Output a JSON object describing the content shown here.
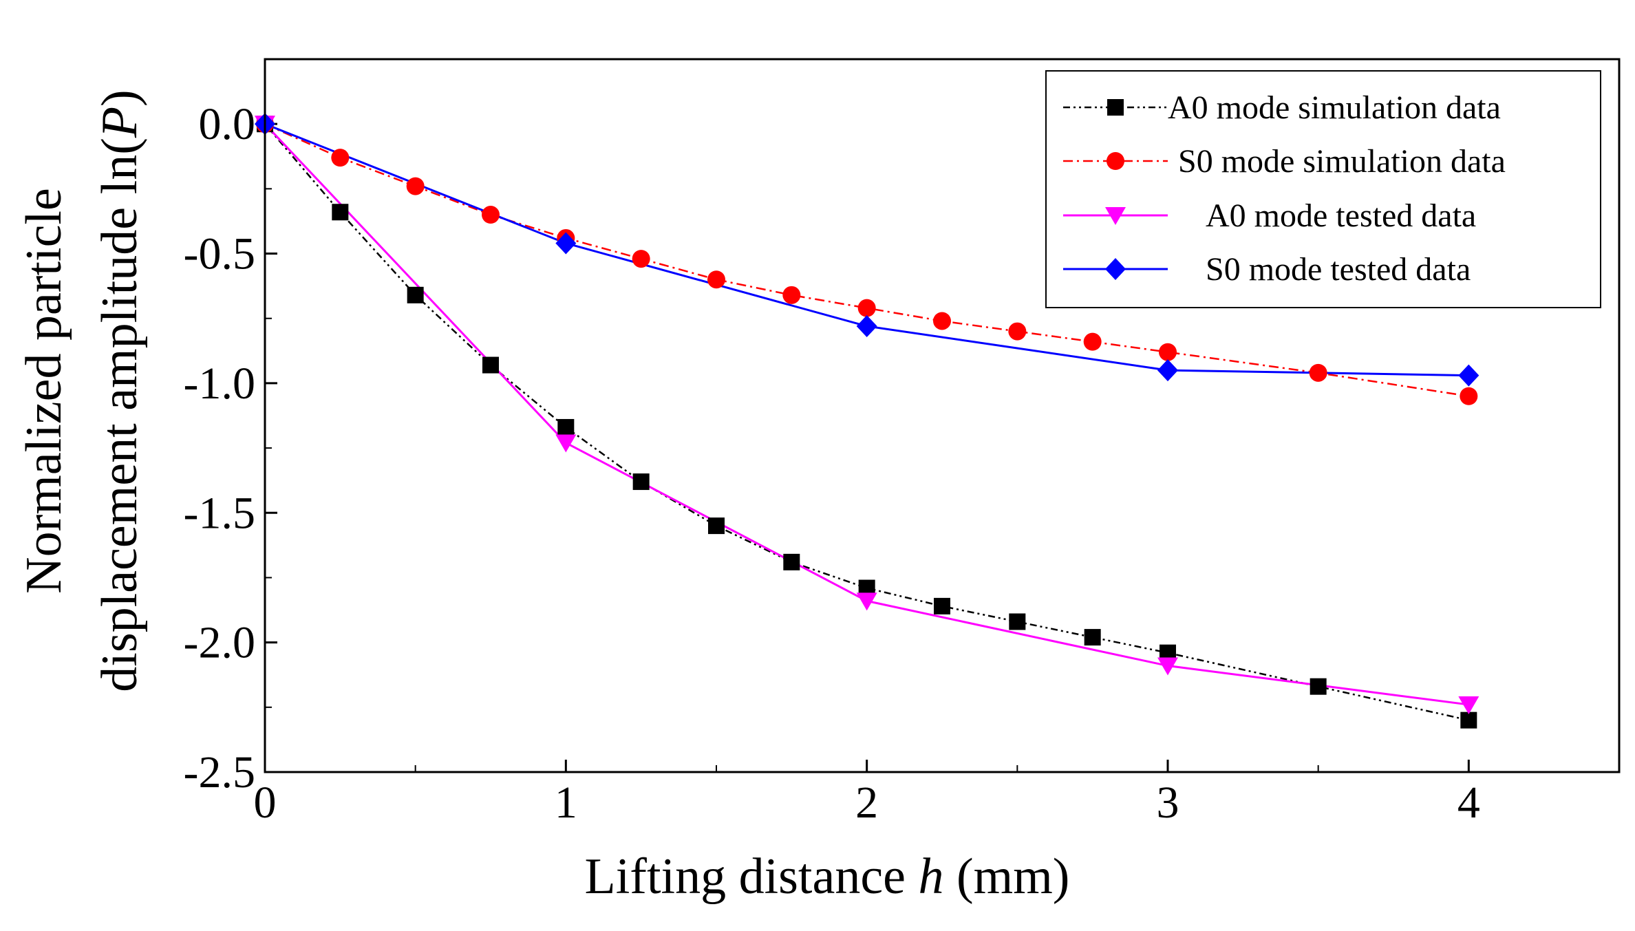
{
  "chart_data": {
    "type": "line",
    "xlabel": {
      "prefix": "Lifting distance ",
      "var": "h",
      "suffix": " (mm)"
    },
    "ylabel": {
      "line1": "Normalized particle",
      "line2_prefix": "displacement amplitude ln(",
      "line2_var": "P",
      "line2_suffix": ")"
    },
    "xlim": [
      0,
      4.5
    ],
    "ylim": [
      -2.5,
      0.25
    ],
    "xticks": [
      0,
      1,
      2,
      3,
      4
    ],
    "xtick_labels": [
      "0",
      "1",
      "2",
      "3",
      "4"
    ],
    "yticks": [
      0.0,
      -0.5,
      -1.0,
      -1.5,
      -2.0,
      -2.5
    ],
    "ytick_labels": [
      "0.0",
      "-0.5",
      "-1.0",
      "-1.5",
      "-2.0",
      "-2.5"
    ],
    "legend_position": "top-right",
    "series": [
      {
        "name": "A0 mode simulation data",
        "color": "#000000",
        "line": "dash-dot-dot",
        "marker": "square",
        "x": [
          0,
          0.25,
          0.5,
          0.75,
          1.0,
          1.25,
          1.5,
          1.75,
          2.0,
          2.25,
          2.5,
          2.75,
          3.0,
          3.5,
          4.0
        ],
        "y": [
          0,
          -0.34,
          -0.66,
          -0.93,
          -1.17,
          -1.38,
          -1.55,
          -1.69,
          -1.79,
          -1.86,
          -1.92,
          -1.98,
          -2.04,
          -2.17,
          -2.3
        ]
      },
      {
        "name": "S0 mode simulation data",
        "color": "#ff0000",
        "line": "dash-dot",
        "marker": "circle",
        "x": [
          0,
          0.25,
          0.5,
          0.75,
          1.0,
          1.25,
          1.5,
          1.75,
          2.0,
          2.25,
          2.5,
          2.75,
          3.0,
          3.5,
          4.0
        ],
        "y": [
          0,
          -0.13,
          -0.24,
          -0.35,
          -0.44,
          -0.52,
          -0.6,
          -0.66,
          -0.71,
          -0.76,
          -0.8,
          -0.84,
          -0.88,
          -0.96,
          -1.05
        ]
      },
      {
        "name": "A0 mode tested data",
        "color": "#ff00ff",
        "line": "solid",
        "marker": "triangle-down",
        "x": [
          0,
          1,
          2,
          3,
          4
        ],
        "y": [
          0,
          -1.23,
          -1.84,
          -2.09,
          -2.24
        ]
      },
      {
        "name": "S0 mode tested data",
        "color": "#0000ff",
        "line": "solid",
        "marker": "diamond",
        "x": [
          0,
          1,
          2,
          3,
          4
        ],
        "y": [
          0,
          -0.46,
          -0.78,
          -0.95,
          -0.97
        ]
      }
    ]
  }
}
